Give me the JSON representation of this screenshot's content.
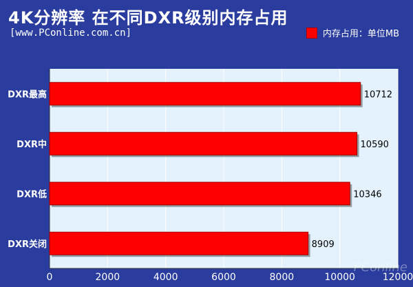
{
  "header": {
    "title": "4K分辨率 在不同DXR级别内存占用",
    "source": "[www.PConline.com.cn]",
    "legend_label": "内存占用：单位MB"
  },
  "colors": {
    "background": "#2a3d9e",
    "plot_area": "#e3f2fc",
    "bar": "#ff0000"
  },
  "watermark": "PConline",
  "chart_data": {
    "type": "bar",
    "orientation": "horizontal",
    "categories": [
      "DXR最高",
      "DXR中",
      "DXR低",
      "DXR关闭"
    ],
    "values": [
      10712,
      10590,
      10346,
      8909
    ],
    "data_labels": [
      "10712",
      "10590",
      "10346",
      "8909"
    ],
    "xticks": [
      "0",
      "2000",
      "4000",
      "6000",
      "8000",
      "10000",
      "12000"
    ],
    "xlim": [
      0,
      12000
    ],
    "legend": [
      "内存占用：单位MB"
    ],
    "legend_position": "top-right",
    "grid": true
  }
}
